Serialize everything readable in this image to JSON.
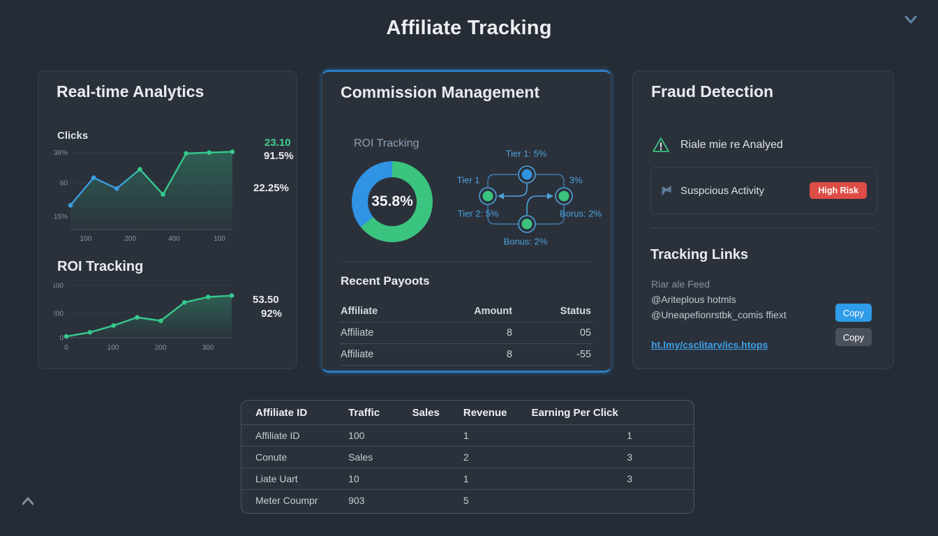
{
  "page": {
    "title": "Affiliate Tracking"
  },
  "cards": {
    "analytics": {
      "title": "Real-time Analytics",
      "clicks_label": "Clicks",
      "clicks_stats": {
        "primary": "23.10",
        "secondary": "91.5%",
        "tertiary": "22.25%"
      },
      "roi_label": "ROI Tracking",
      "roi_stats": {
        "primary": "53.50",
        "secondary": "92%"
      }
    },
    "commission": {
      "title": "Commission Management",
      "donut_label": "ROI Tracking",
      "donut_center": "35.8%",
      "flow": {
        "top_label": "Tier 1: 5%",
        "left_label": "Tier 1",
        "right_label": "3%",
        "bottom_left_label": "Tier 2: 5%",
        "bottom_right_label": "Borus: 2%",
        "bottom_label": "Bonus: 2%"
      },
      "payouts": {
        "title": "Recent Payoots",
        "headers": [
          "Affiliate",
          "Amount",
          "Status"
        ],
        "rows": [
          [
            "Affiliate",
            "8",
            "05"
          ],
          [
            "Affiliate",
            "8",
            "-55"
          ]
        ]
      }
    },
    "fraud": {
      "title": "Fraud Detection",
      "alert_text": "Riale mie re Analyed",
      "suspicious": {
        "label": "Suspcious Activity",
        "badge": "High Risk"
      },
      "tracking": {
        "title": "Tracking Links",
        "line1": "Riar ale Feed",
        "line2": "@Ariteplous hotmls",
        "line3": "@Uneapefionrstbk_comis ffiext",
        "link": "ht.lmy/csclitarv/ics.htops",
        "copy_primary": "Copy",
        "copy_secondary": "Copy"
      }
    }
  },
  "table": {
    "headers": [
      "Affiliate ID",
      "Traffic",
      "Sales",
      "Revenue",
      "Earning Per Click"
    ],
    "rows": [
      [
        "Affiliate ID",
        "100",
        "",
        "1",
        "1"
      ],
      [
        "Conute",
        "Sales",
        "",
        "2",
        "3"
      ],
      [
        "Liate Uart",
        "10",
        "",
        "1",
        "3"
      ],
      [
        "Meter Coumpr",
        "903",
        "",
        "5",
        ""
      ]
    ]
  },
  "colors": {
    "background": "#262c35",
    "card": "#2b313b",
    "accent_blue": "#2f93e0",
    "accent_green": "#35c98c",
    "risk_red": "#dd4c45",
    "link_blue": "#3da0e8"
  },
  "chart_data": [
    {
      "id": "clicks",
      "type": "line",
      "title": "Clicks",
      "x_tick_labels": [
        "100",
        "200",
        "400",
        "100"
      ],
      "y_tick_labels": [
        "36%",
        "60",
        "15%"
      ],
      "series": [
        {
          "name": "Clicks",
          "values": [
            29,
            62,
            49,
            72,
            42,
            91,
            92,
            93
          ]
        }
      ],
      "ylim": [
        0,
        100
      ],
      "colors": [
        "#3b9ce0",
        "#35c98c"
      ],
      "side_stats": [
        "23.10",
        "91.5%",
        "22.25%"
      ],
      "legend_position": "none",
      "grid": true
    },
    {
      "id": "roi",
      "type": "line",
      "title": "ROI Tracking",
      "x_tick_labels": [
        "0",
        "100",
        "200",
        "300"
      ],
      "y_tick_labels": [
        "100",
        "200",
        "0"
      ],
      "series": [
        {
          "name": "ROI",
          "values": [
            2,
            8,
            18,
            30,
            25,
            52,
            60,
            62
          ]
        }
      ],
      "ylim": [
        0,
        80
      ],
      "colors": [
        "#35c98c"
      ],
      "side_stats": [
        "53.50",
        "92%"
      ],
      "legend_position": "none",
      "grid": true
    },
    {
      "id": "commission-split",
      "type": "pie",
      "title": "ROI Tracking",
      "center_label": "35.8%",
      "slices": [
        {
          "name": "share-green",
          "value": 64.2,
          "color": "#3bc47f"
        },
        {
          "name": "share-blue",
          "value": 35.8,
          "color": "#3193e3"
        }
      ]
    }
  ]
}
